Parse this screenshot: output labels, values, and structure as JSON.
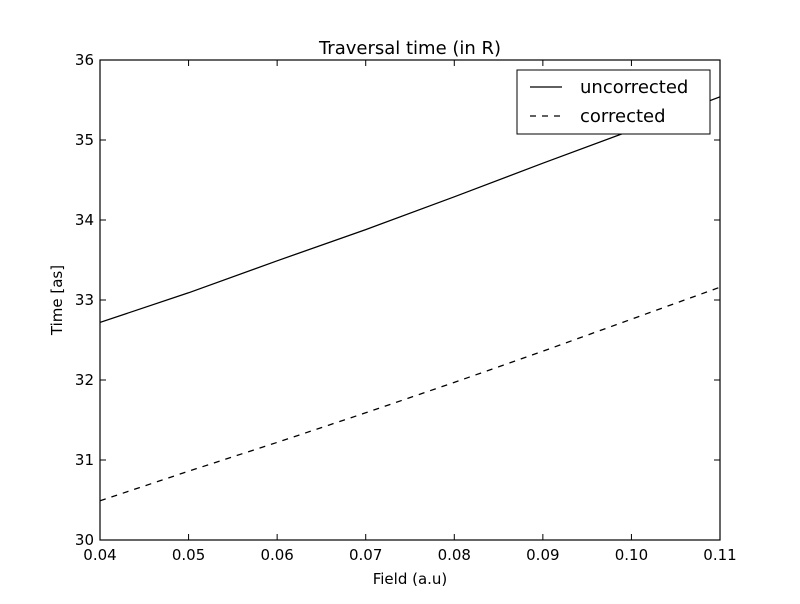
{
  "chart_data": {
    "type": "line",
    "title": "Traversal time (in R)",
    "xlabel": "Field (a.u)",
    "ylabel": "Time [as]",
    "xlim": [
      0.04,
      0.11
    ],
    "ylim": [
      30,
      36
    ],
    "xticks": [
      0.04,
      0.05,
      0.06,
      0.07,
      0.08,
      0.09,
      0.1,
      0.11
    ],
    "xtick_labels": [
      "0.04",
      "0.05",
      "0.06",
      "0.07",
      "0.08",
      "0.09",
      "0.10",
      "0.11"
    ],
    "yticks": [
      30,
      31,
      32,
      33,
      34,
      35,
      36
    ],
    "ytick_labels": [
      "30",
      "31",
      "32",
      "33",
      "34",
      "35",
      "36"
    ],
    "grid": false,
    "legend_position": "top-right",
    "series": [
      {
        "name": "uncorrected",
        "line_style": "solid",
        "color": "#000000",
        "x": [
          0.04,
          0.05,
          0.06,
          0.07,
          0.08,
          0.09,
          0.1,
          0.11
        ],
        "y": [
          32.72,
          33.09,
          33.49,
          33.88,
          34.29,
          34.71,
          35.12,
          35.54
        ]
      },
      {
        "name": "corrected",
        "line_style": "dashed",
        "color": "#000000",
        "x": [
          0.04,
          0.05,
          0.06,
          0.07,
          0.08,
          0.09,
          0.1,
          0.11
        ],
        "y": [
          30.49,
          30.86,
          31.22,
          31.59,
          31.97,
          32.36,
          32.76,
          33.16
        ]
      }
    ]
  }
}
